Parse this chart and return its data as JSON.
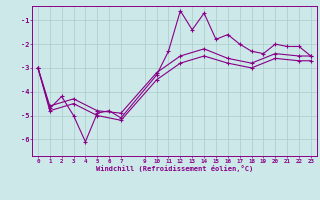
{
  "xlabel": "Windchill (Refroidissement éolien,°C)",
  "bg_color": "#cce8e8",
  "line_color": "#880088",
  "grid_color": "#aacccc",
  "x_ticks": [
    0,
    1,
    2,
    3,
    4,
    5,
    6,
    7,
    9,
    10,
    11,
    12,
    13,
    14,
    15,
    16,
    17,
    18,
    19,
    20,
    21,
    22,
    23
  ],
  "y_ticks": [
    -1,
    -2,
    -3,
    -4,
    -5,
    -6
  ],
  "ylim": [
    -6.7,
    -0.4
  ],
  "xlim": [
    -0.5,
    23.5
  ],
  "series1_x": [
    0,
    1,
    2,
    3,
    4,
    5,
    6,
    7,
    10,
    11,
    12,
    13,
    14,
    15,
    16,
    17,
    18,
    19,
    20,
    21,
    22,
    23
  ],
  "series1_y": [
    -3.0,
    -4.7,
    -4.2,
    -5.0,
    -6.1,
    -4.9,
    -4.8,
    -5.1,
    -3.3,
    -2.3,
    -0.6,
    -1.4,
    -0.7,
    -1.8,
    -1.6,
    -2.0,
    -2.3,
    -2.4,
    -2.0,
    -2.1,
    -2.1,
    -2.5
  ],
  "series2_x": [
    0,
    1,
    3,
    5,
    7,
    10,
    12,
    14,
    16,
    18,
    20,
    22,
    23
  ],
  "series2_y": [
    -3.0,
    -4.6,
    -4.3,
    -4.8,
    -4.9,
    -3.2,
    -2.5,
    -2.2,
    -2.6,
    -2.8,
    -2.4,
    -2.5,
    -2.5
  ],
  "series3_x": [
    0,
    1,
    3,
    5,
    7,
    10,
    12,
    14,
    16,
    18,
    20,
    22,
    23
  ],
  "series3_y": [
    -3.0,
    -4.8,
    -4.5,
    -5.0,
    -5.2,
    -3.5,
    -2.8,
    -2.5,
    -2.8,
    -3.0,
    -2.6,
    -2.7,
    -2.7
  ]
}
